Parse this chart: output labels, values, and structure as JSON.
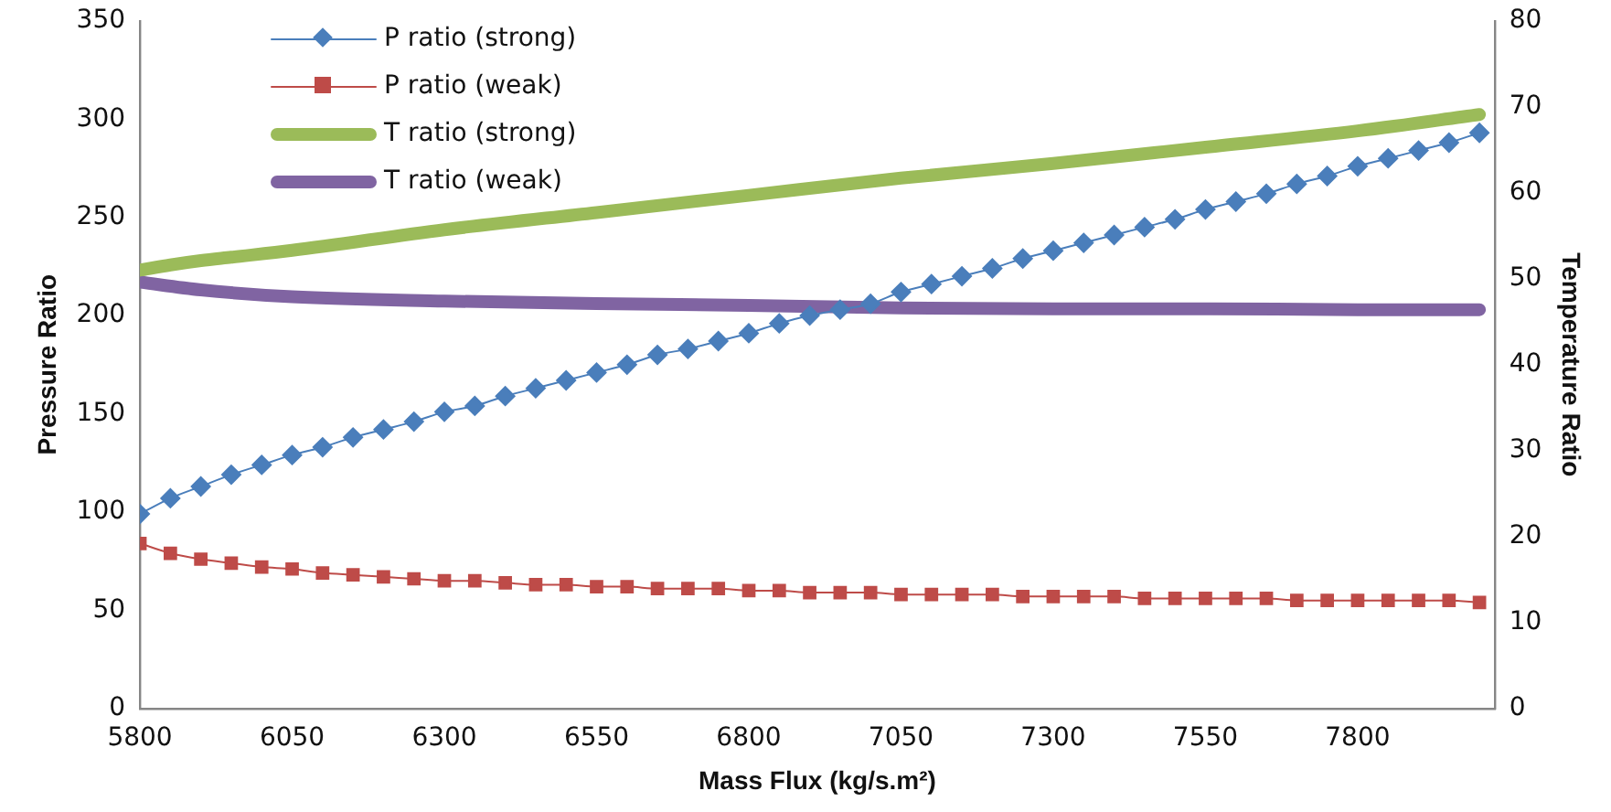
{
  "chart_data": {
    "type": "line",
    "xlabel": "Mass Flux (kg/s.m²)",
    "ylabel": "Pressure Ratio",
    "y2label": "Temperature Ratio",
    "x": [
      5800,
      5850,
      5900,
      5950,
      6000,
      6050,
      6100,
      6150,
      6200,
      6250,
      6300,
      6350,
      6400,
      6450,
      6500,
      6550,
      6600,
      6650,
      6700,
      6750,
      6800,
      6850,
      6900,
      6950,
      7000,
      7050,
      7100,
      7150,
      7200,
      7250,
      7300,
      7350,
      7400,
      7450,
      7500,
      7550,
      7600,
      7650,
      7700,
      7750,
      7800,
      7850,
      7900,
      7950,
      8000
    ],
    "xlim": [
      5800,
      8025
    ],
    "xticks": [
      5800,
      6050,
      6300,
      6550,
      6800,
      7050,
      7300,
      7550,
      7800
    ],
    "ylim": [
      0,
      350
    ],
    "yticks": [
      0,
      50,
      100,
      150,
      200,
      250,
      300,
      350
    ],
    "y2lim": [
      0,
      80
    ],
    "y2ticks": [
      0,
      10,
      20,
      30,
      40,
      50,
      60,
      70,
      80
    ],
    "grid": false,
    "legend": "top left",
    "series": [
      {
        "name": "P ratio (strong)",
        "color": "#4a7ebb",
        "marker": "diamond",
        "values": [
          99,
          107,
          113,
          119,
          124,
          129,
          133,
          138,
          142,
          146,
          151,
          154,
          159,
          163,
          167,
          171,
          175,
          180,
          183,
          187,
          191,
          196,
          200,
          203,
          206,
          212,
          216,
          220,
          224,
          229,
          233,
          237,
          241,
          245,
          249,
          254,
          258,
          262,
          267,
          271,
          276,
          280,
          284,
          288,
          293
        ]
      },
      {
        "name": "P ratio (weak)",
        "color": "#be4b48",
        "marker": "square",
        "values": [
          84,
          79,
          76,
          74,
          72,
          71,
          69,
          68,
          67,
          66,
          65,
          65,
          64,
          63,
          63,
          62,
          62,
          61,
          61,
          61,
          60,
          60,
          59,
          59,
          59,
          58,
          58,
          58,
          58,
          57,
          57,
          57,
          57,
          56,
          56,
          56,
          56,
          56,
          55,
          55,
          55,
          55,
          55,
          55,
          54
        ]
      },
      {
        "name": "T ratio (strong)",
        "color": "#9bbb59",
        "axis": "y2",
        "marker": "none",
        "x": [
          5800,
          5850,
          5900,
          5950,
          6050,
          6300,
          6550,
          6800,
          7050,
          7300,
          7550,
          7800,
          8000
        ],
        "values": [
          51.0,
          51.6,
          52.1,
          52.5,
          53.3,
          55.7,
          57.7,
          59.7,
          61.7,
          63.4,
          65.3,
          67.2,
          69.1
        ]
      },
      {
        "name": "T ratio (weak)",
        "color": "#8064a2",
        "axis": "y2",
        "marker": "none",
        "x": [
          5800,
          5900,
          6050,
          6300,
          6550,
          6800,
          7050,
          7300,
          7550,
          7800,
          8000
        ],
        "values": [
          49.6,
          48.7,
          47.9,
          47.4,
          47.1,
          46.9,
          46.6,
          46.5,
          46.5,
          46.4,
          46.4
        ]
      }
    ]
  }
}
